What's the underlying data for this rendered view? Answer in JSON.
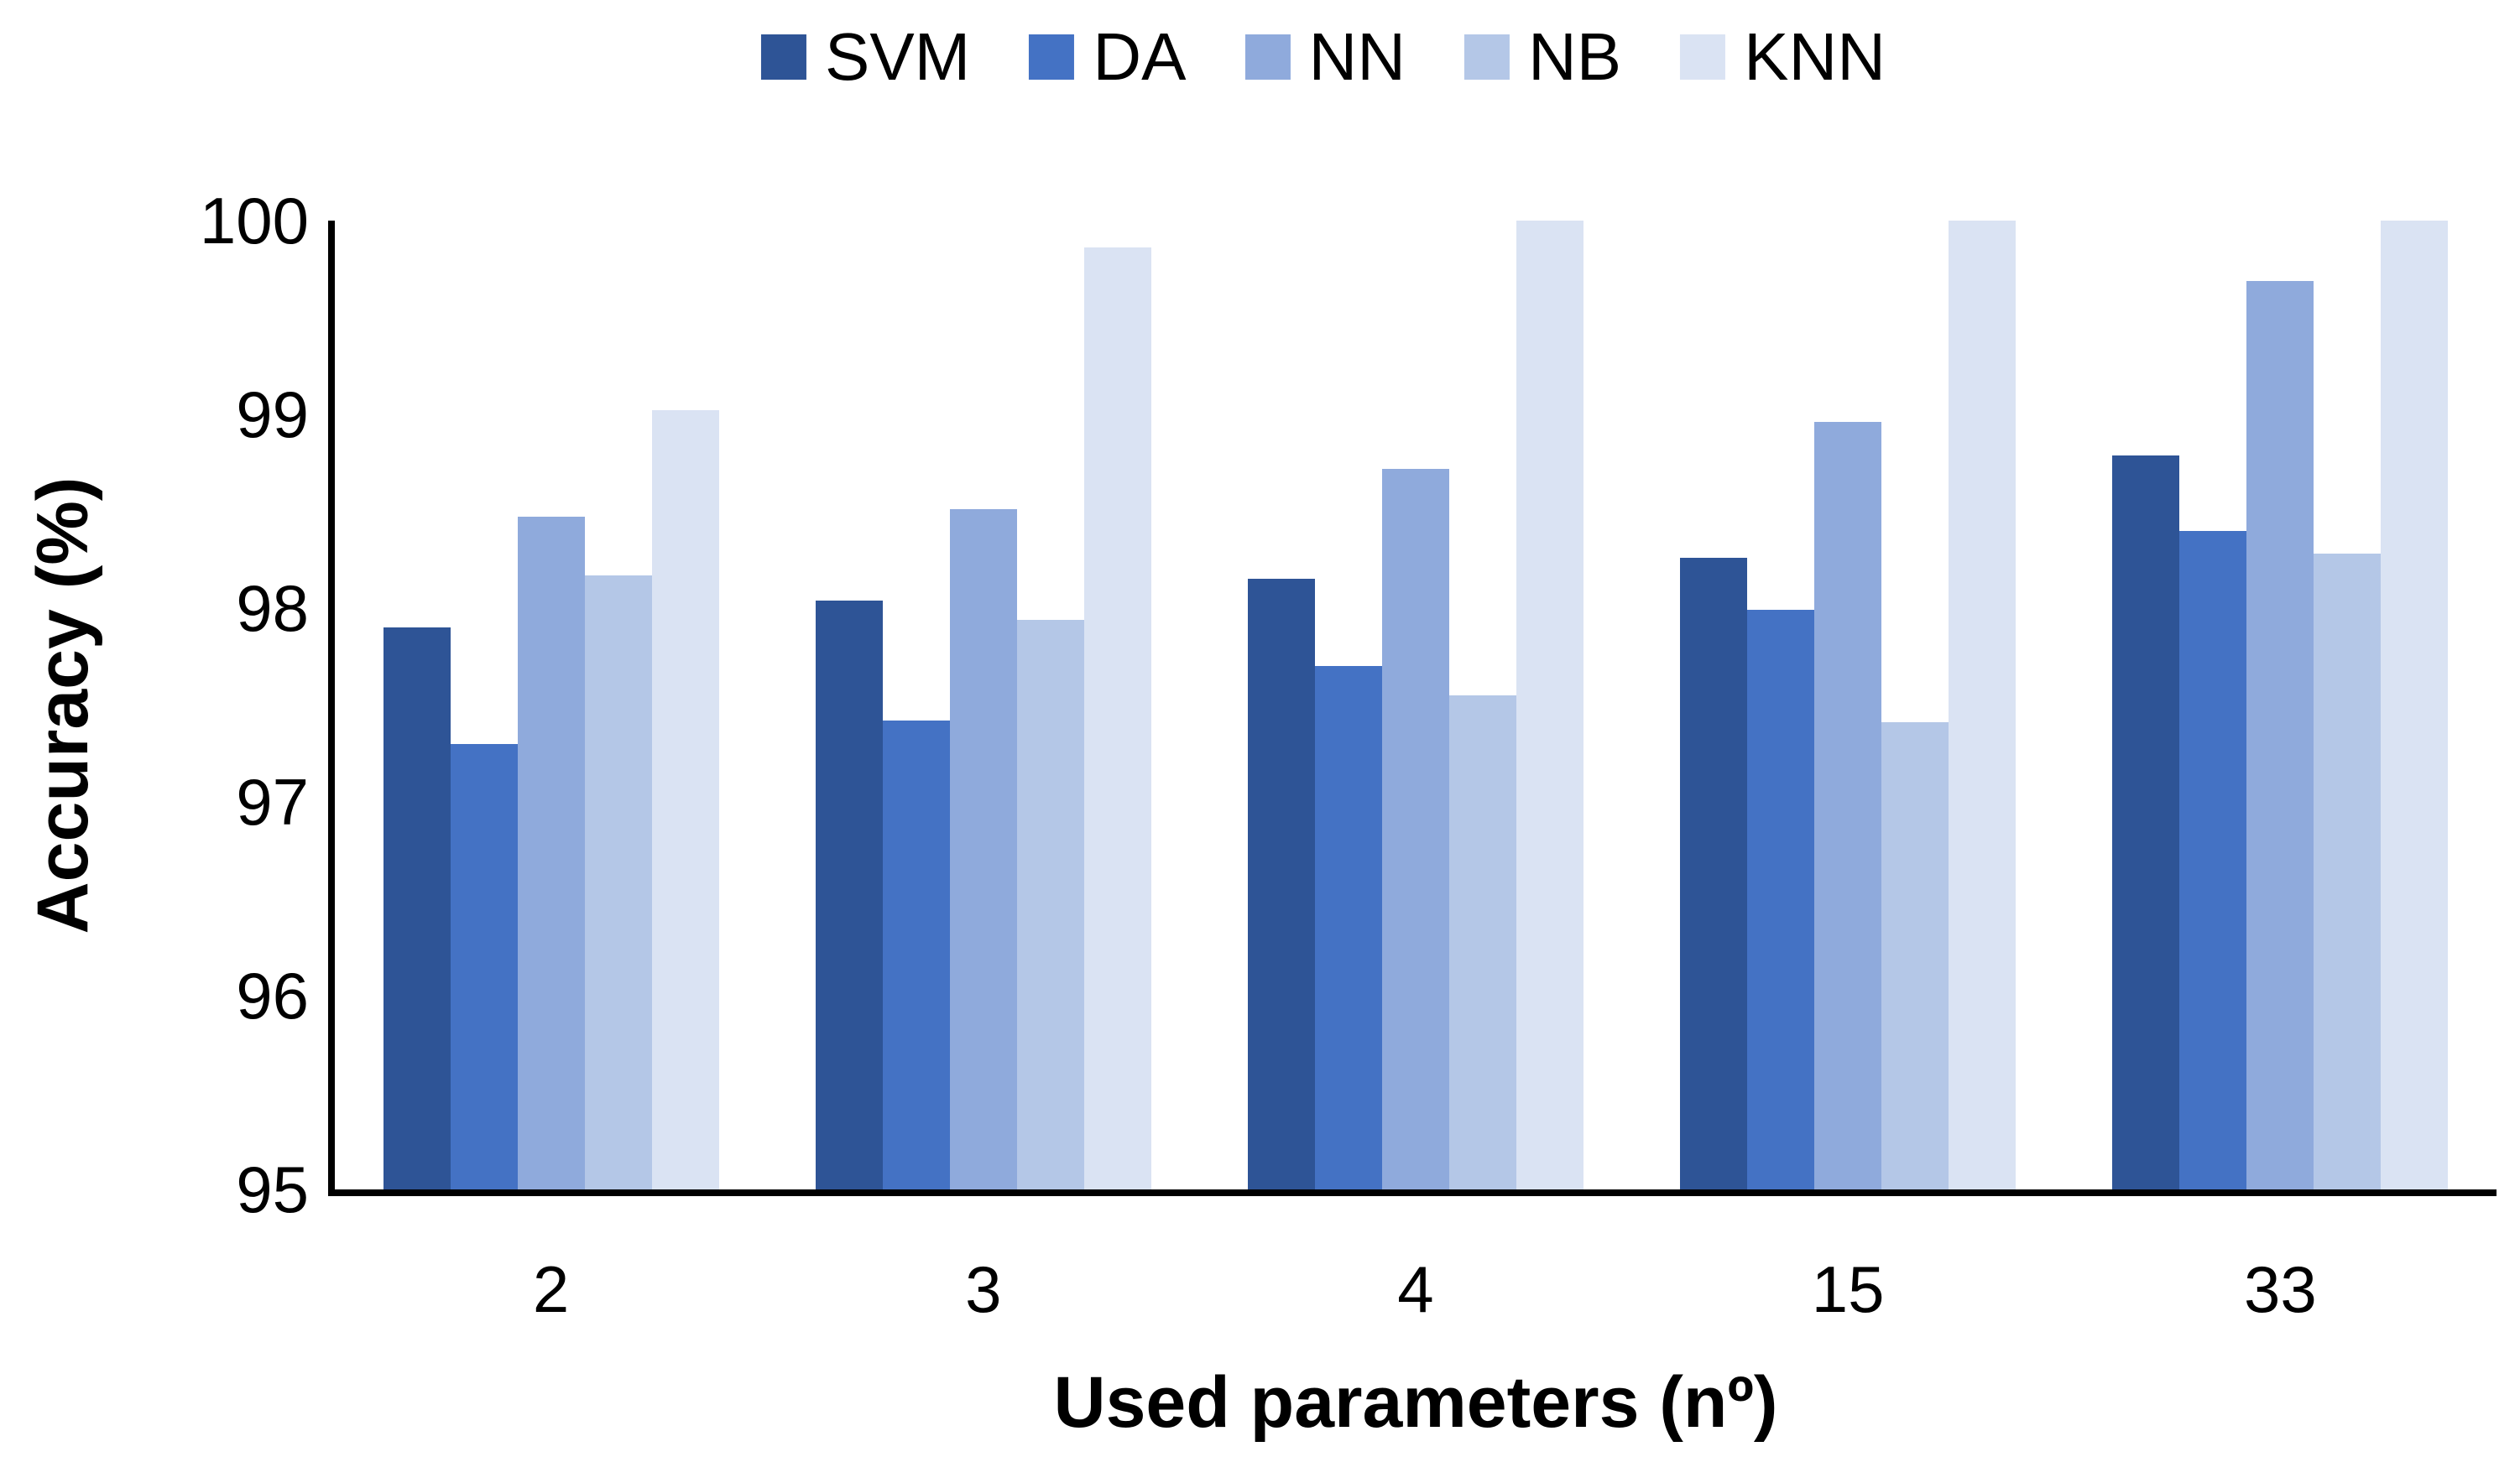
{
  "chart_data": {
    "type": "bar",
    "title": "",
    "categories": [
      "2",
      "3",
      "4",
      "15",
      "33"
    ],
    "series": [
      {
        "name": "SVM",
        "color": "#2E5496",
        "values": [
          97.9,
          98.04,
          98.15,
          98.26,
          98.79
        ]
      },
      {
        "name": "DA",
        "color": "#4472C4",
        "values": [
          97.3,
          97.42,
          97.7,
          97.99,
          98.4
        ]
      },
      {
        "name": "NN",
        "color": "#8FAADC",
        "values": [
          98.47,
          98.51,
          98.72,
          98.96,
          99.69
        ]
      },
      {
        "name": "NB",
        "color": "#B4C7E7",
        "values": [
          98.17,
          97.94,
          97.55,
          97.41,
          98.28
        ]
      },
      {
        "name": "KNN",
        "color": "#DAE3F3",
        "values": [
          99.02,
          99.86,
          100.0,
          100.0,
          100.0
        ]
      }
    ],
    "xlabel": "Used parameters (nº)",
    "ylabel": "Accuracy (%)",
    "ylim": [
      95,
      100
    ],
    "yticks": [
      95,
      96,
      97,
      98,
      99,
      100
    ],
    "legend_position": "top",
    "grid": false,
    "axis_color": "#000000",
    "background_color": "#FFFFFF"
  }
}
